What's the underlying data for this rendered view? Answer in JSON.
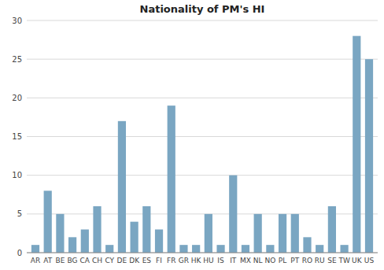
{
  "chart_data": {
    "type": "bar",
    "title": "Nationality of PM's HI",
    "categories": [
      "AR",
      "AT",
      "BE",
      "BG",
      "CA",
      "CH",
      "CY",
      "DE",
      "DK",
      "ES",
      "FI",
      "FR",
      "GR",
      "HK",
      "HU",
      "IS",
      "IT",
      "MX",
      "NL",
      "NO",
      "PL",
      "PT",
      "RO",
      "RU",
      "SE",
      "TW",
      "UK",
      "US"
    ],
    "values": [
      1,
      8,
      5,
      2,
      3,
      6,
      1,
      17,
      4,
      6,
      3,
      19,
      1,
      1,
      5,
      1,
      10,
      1,
      5,
      1,
      5,
      5,
      2,
      1,
      6,
      1,
      28,
      25
    ],
    "color": "#7aa6c2",
    "ylim": [
      0,
      30
    ],
    "yticks": [
      0,
      5,
      10,
      15,
      20,
      25,
      30
    ],
    "grid": true
  }
}
